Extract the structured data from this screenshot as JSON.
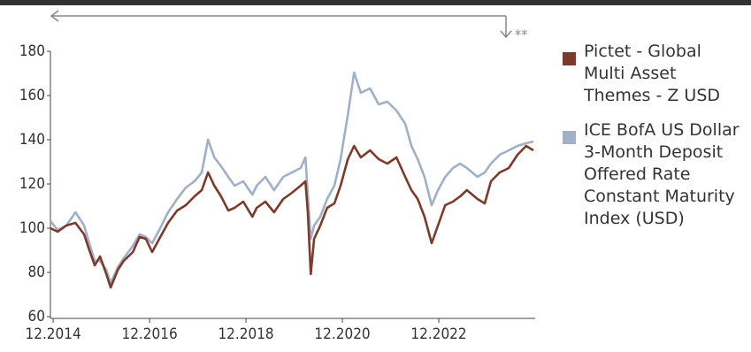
{
  "chart_data": {
    "type": "line",
    "annotation": "**",
    "x": [
      2014.86,
      2015.01,
      2015.19,
      2015.38,
      2015.56,
      2015.65,
      2015.78,
      2015.89,
      2016.02,
      2016.11,
      2016.26,
      2016.38,
      2016.57,
      2016.71,
      2016.84,
      2016.97,
      2017.12,
      2017.3,
      2017.49,
      2017.67,
      2017.85,
      2018.0,
      2018.13,
      2018.26,
      2018.4,
      2018.55,
      2018.68,
      2018.86,
      2019.05,
      2019.14,
      2019.32,
      2019.5,
      2019.69,
      2019.87,
      2020.05,
      2020.15,
      2020.2,
      2020.26,
      2020.33,
      2020.46,
      2020.6,
      2020.75,
      2020.88,
      2021.03,
      2021.16,
      2021.3,
      2021.49,
      2021.67,
      2021.85,
      2022.04,
      2022.22,
      2022.35,
      2022.48,
      2022.62,
      2022.77,
      2022.9,
      2023.05,
      2023.21,
      2023.36,
      2023.5,
      2023.72,
      2023.87,
      2024.0,
      2024.18,
      2024.37,
      2024.55,
      2024.73,
      2024.88
    ],
    "series": [
      {
        "name": "Pictet - Global Multi Asset Themes - Z USD",
        "color": "#7b3a2c",
        "values": [
          100,
          98.4,
          101.2,
          102.4,
          97.2,
          91.2,
          83.2,
          87.2,
          79.2,
          73.2,
          81.2,
          85.2,
          89.2,
          96,
          95.2,
          89.2,
          95.2,
          102.4,
          108,
          110.4,
          114.4,
          117.2,
          125.2,
          119.2,
          114.4,
          108,
          109.2,
          112,
          105.2,
          109.2,
          112,
          107.2,
          113.2,
          116,
          119.2,
          121.2,
          107.2,
          79.2,
          95.2,
          101.2,
          109.2,
          111.2,
          119.2,
          131.2,
          137.2,
          132,
          135.2,
          131.2,
          129.2,
          132,
          123.2,
          117.2,
          113.2,
          105.2,
          93.2,
          101.2,
          110.4,
          112,
          114.4,
          117.2,
          113.2,
          111.2,
          121.2,
          125.2,
          127.2,
          133.2,
          137.2,
          135.2
        ]
      },
      {
        "name": "ICE BofA US Dollar 3-Month Deposit Offered Rate Constant Maturity Index (USD)",
        "color": "#9fb0c8",
        "values": [
          103.2,
          99.2,
          101.2,
          107.2,
          101.2,
          94.4,
          85.2,
          85.2,
          81.2,
          75.2,
          82.4,
          86.4,
          92,
          97.2,
          96,
          93.2,
          99.2,
          107.2,
          113.2,
          118.4,
          121.2,
          125.2,
          140,
          132,
          128,
          123.2,
          119.2,
          121.2,
          115.2,
          119.2,
          123.2,
          117.2,
          123.2,
          125.2,
          127.2,
          132,
          115.2,
          95.2,
          101.2,
          105.2,
          113.2,
          119.2,
          131.2,
          151.2,
          170.4,
          161.2,
          163.2,
          156,
          157.2,
          153.2,
          147.2,
          137.2,
          131.2,
          123.2,
          110.4,
          117.2,
          123.2,
          127.2,
          129.2,
          127.2,
          123.2,
          125.2,
          129.2,
          133.2,
          135.2,
          137.2,
          138.4,
          139.2
        ]
      }
    ],
    "xlim": [
      2014.86,
      2024.88
    ],
    "xticks": [
      {
        "value": 2014.917,
        "label": "12.2014"
      },
      {
        "value": 2016.917,
        "label": "12.2016"
      },
      {
        "value": 2018.917,
        "label": "12.2018"
      },
      {
        "value": 2020.917,
        "label": "12.2020"
      },
      {
        "value": 2022.917,
        "label": "12.2022"
      }
    ],
    "ylim": [
      60,
      180
    ],
    "yticks": [
      60,
      80,
      100,
      120,
      140,
      160,
      180
    ],
    "grid": false,
    "legend": "right"
  }
}
